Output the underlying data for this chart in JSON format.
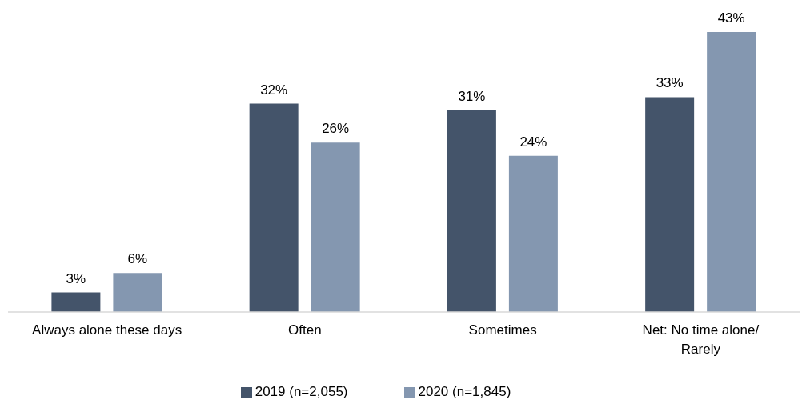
{
  "chart_data": {
    "type": "bar",
    "categories": [
      "Always alone these days",
      "Often",
      "Sometimes",
      "Net: No time alone/ Rarely"
    ],
    "series": [
      {
        "name": "2019 (n=2,055)",
        "color": "#44546a",
        "values": [
          3,
          32,
          31,
          33
        ],
        "value_labels": [
          "3%",
          "32%",
          "31%",
          "33%"
        ]
      },
      {
        "name": "2020 (n=1,845)",
        "color": "#8497b0",
        "values": [
          6,
          26,
          24,
          43
        ],
        "value_labels": [
          "6%",
          "26%",
          "24%",
          "43%"
        ]
      }
    ],
    "legend": "bottom",
    "grid": false
  }
}
